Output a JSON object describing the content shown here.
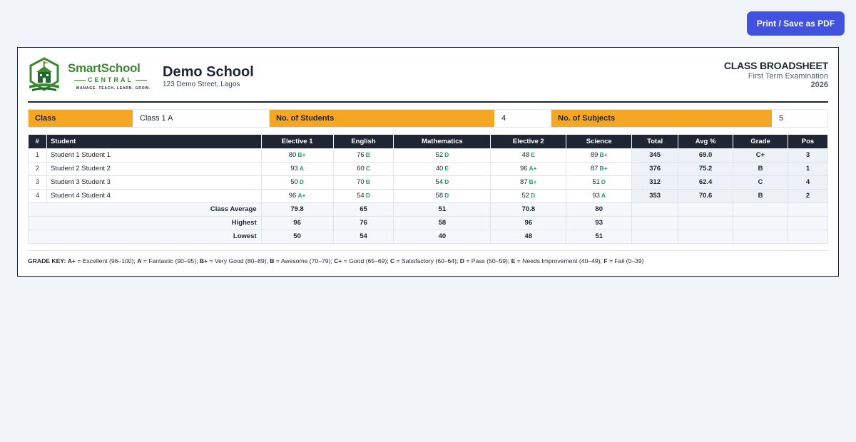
{
  "toolbar": {
    "print_label": "Print / Save as PDF"
  },
  "brand": {
    "name_part1": "SmartSchool",
    "name_part2": "",
    "sub": "CENTRAL",
    "tagline": "MANAGE. TEACH. LEARN. GROW.",
    "colors": {
      "green": "#3a8a2f",
      "dark_green": "#1f6a2a"
    }
  },
  "school": {
    "name": "Demo School",
    "address": "123 Demo Street, Lagos"
  },
  "document": {
    "title": "CLASS BROADSHEET",
    "term": "First Term Examination",
    "year": "2026"
  },
  "info": {
    "class_label": "Class",
    "class_value": "Class 1 A",
    "students_label": "No. of Students",
    "students_value": "4",
    "subjects_label": "No. of Subjects",
    "subjects_value": "5"
  },
  "table": {
    "headers": [
      "#",
      "Student",
      "Elective 1",
      "English",
      "Mathematics",
      "Elective 2",
      "Science",
      "Total",
      "Avg %",
      "Grade",
      "Pos"
    ],
    "rows": [
      {
        "idx": "1",
        "name": "Student 1 Student 1",
        "scores": [
          [
            "80",
            "B+"
          ],
          [
            "76",
            "B"
          ],
          [
            "52",
            "D"
          ],
          [
            "48",
            "E"
          ],
          [
            "89",
            "B+"
          ]
        ],
        "total": "345",
        "avg": "69.0",
        "grade": "C+",
        "pos": "3"
      },
      {
        "idx": "2",
        "name": "Student 2 Student 2",
        "scores": [
          [
            "93",
            "A"
          ],
          [
            "60",
            "C"
          ],
          [
            "40",
            "E"
          ],
          [
            "96",
            "A+"
          ],
          [
            "87",
            "B+"
          ]
        ],
        "total": "376",
        "avg": "75.2",
        "grade": "B",
        "pos": "1"
      },
      {
        "idx": "3",
        "name": "Student 3 Student 3",
        "scores": [
          [
            "50",
            "D"
          ],
          [
            "70",
            "B"
          ],
          [
            "54",
            "D"
          ],
          [
            "87",
            "B+"
          ],
          [
            "51",
            "D"
          ]
        ],
        "total": "312",
        "avg": "62.4",
        "grade": "C",
        "pos": "4"
      },
      {
        "idx": "4",
        "name": "Student 4 Student 4",
        "scores": [
          [
            "96",
            "A+"
          ],
          [
            "54",
            "D"
          ],
          [
            "58",
            "D"
          ],
          [
            "52",
            "D"
          ],
          [
            "93",
            "A"
          ]
        ],
        "total": "353",
        "avg": "70.6",
        "grade": "B",
        "pos": "2"
      }
    ],
    "summary": [
      {
        "label": "Class Average",
        "values": [
          "79.8",
          "65",
          "51",
          "70.8",
          "80"
        ]
      },
      {
        "label": "Highest",
        "values": [
          "96",
          "76",
          "58",
          "96",
          "93"
        ]
      },
      {
        "label": "Lowest",
        "values": [
          "50",
          "54",
          "40",
          "48",
          "51"
        ]
      }
    ]
  },
  "grade_key": {
    "label": "GRADE KEY:",
    "items": [
      {
        "grade": "A+",
        "desc": " = Excellent (96–100); "
      },
      {
        "grade": "A",
        "desc": " = Fantastic (90–95); "
      },
      {
        "grade": "B+",
        "desc": " = Very Good (80–89); "
      },
      {
        "grade": "B",
        "desc": " = Awesome (70–79); "
      },
      {
        "grade": "C+",
        "desc": " = Good (65–69); "
      },
      {
        "grade": "C",
        "desc": " = Satisfactory (60–64); "
      },
      {
        "grade": "D",
        "desc": " = Pass (50–59); "
      },
      {
        "grade": "E",
        "desc": " = Needs Improvement (40–49); "
      },
      {
        "grade": "F",
        "desc": " = Fail (0–39)"
      }
    ]
  }
}
